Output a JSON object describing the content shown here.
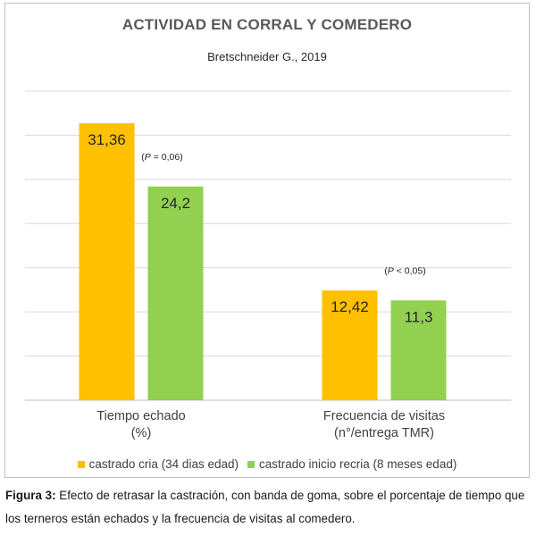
{
  "chart_data": {
    "type": "bar",
    "title": "ACTIVIDAD  EN CORRAL Y COMEDERO",
    "subtitle": "Bretschneider G., 2019",
    "categories": [
      [
        "Tiempo echado",
        "(%)"
      ],
      [
        "Frecuencia de visitas",
        "(n°/entrega TMR)"
      ]
    ],
    "series": [
      {
        "name": "castrado cria (34 dias edad)",
        "color": "#FFC000",
        "values": [
          31.36,
          12.42
        ],
        "labels": [
          "31,36",
          "12,42"
        ]
      },
      {
        "name": "castrado inicio recria (8 meses edad)",
        "color": "#92D050",
        "values": [
          24.2,
          11.3
        ],
        "labels": [
          "24,2",
          "11,3"
        ]
      }
    ],
    "annotations": [
      {
        "category": 0,
        "prefix": "(",
        "p": "P",
        "rest": " = 0,06)"
      },
      {
        "category": 1,
        "prefix": "(",
        "p": "P",
        "rest": " < 0,05)"
      }
    ],
    "ylim": [
      0,
      35
    ],
    "grid": true,
    "legend_position": "bottom"
  },
  "caption": {
    "label": "Figura 3:",
    "text": " Efecto de retrasar la castración, con banda de goma, sobre el porcentaje de tiempo que los terneros están echados y la frecuencia de visitas al comedero."
  }
}
